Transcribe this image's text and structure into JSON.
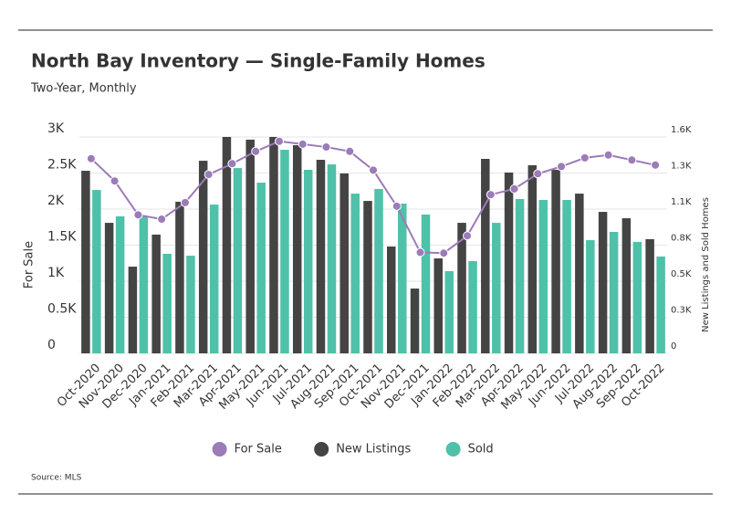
{
  "chart_data": {
    "type": "bar-line",
    "title": "North Bay Inventory — Single-Family Homes",
    "subtitle": "Two-Year, Monthly",
    "ylabel": "For Sale",
    "y2label": "New Listings and Sold Homes",
    "source": "Source: MLS",
    "categories": [
      "Oct-2020",
      "Nov-2020",
      "Dec-2020",
      "Jan-2021",
      "Feb-2021",
      "Mar-2021",
      "Apr-2021",
      "May-2021",
      "Jun-2021",
      "Jul-2021",
      "Aug-2021",
      "Sep-2021",
      "Oct-2021",
      "Nov-2021",
      "Dec-2021",
      "Jan-2022",
      "Feb-2022",
      "Mar-2022",
      "Apr-2022",
      "May-2022",
      "Jun-2022",
      "Jul-2022",
      "Aug-2022",
      "Sep-2022",
      "Oct-2022"
    ],
    "series": [
      {
        "name": "For Sale",
        "type": "line",
        "color": "#9b7bb8",
        "values": [
          2700,
          2390,
          1920,
          1860,
          2090,
          2480,
          2630,
          2800,
          2940,
          2900,
          2860,
          2800,
          2540,
          2040,
          1400,
          1390,
          1630,
          2200,
          2280,
          2490,
          2590,
          2710,
          2750,
          2680,
          2610
        ]
      },
      {
        "name": "New Listings",
        "type": "bar",
        "axis": "y2",
        "color": "#444444",
        "values": [
          1350,
          965,
          641,
          878,
          1121,
          1424,
          1600,
          1580,
          1600,
          1539,
          1431,
          1330,
          1127,
          790,
          479,
          702,
          965,
          1438,
          1337,
          1391,
          1357,
          1181,
          1046,
          999,
          844
        ]
      },
      {
        "name": "Sold",
        "type": "bar",
        "axis": "y2",
        "color": "#4fc1a8",
        "values": [
          1208,
          1013,
          1013,
          736,
          722,
          1100,
          1370,
          1262,
          1505,
          1357,
          1397,
          1181,
          1215,
          1107,
          1026,
          608,
          682,
          965,
          1141,
          1134,
          1134,
          837,
          898,
          824,
          716
        ]
      }
    ],
    "ylim": [
      0,
      3000
    ],
    "yticks": [
      0,
      {
        "value": 500,
        "label": "0.5K"
      },
      {
        "value": 1000,
        "label": "1K"
      },
      {
        "value": 1500,
        "label": "1.5K"
      },
      {
        "value": 2000,
        "label": "2K"
      },
      {
        "value": 2500,
        "label": "2.5K"
      },
      {
        "value": 3000,
        "label": "3K"
      }
    ],
    "y2lim": [
      0,
      1600
    ],
    "y2ticks": [
      0,
      {
        "value": 267,
        "label": "0.3K"
      },
      {
        "value": 533,
        "label": "0.5K"
      },
      {
        "value": 800,
        "label": "0.8K"
      },
      {
        "value": 1067,
        "label": "1.1K"
      },
      {
        "value": 1333,
        "label": "1.3K"
      },
      {
        "value": 1600,
        "label": "1.6K"
      }
    ],
    "grid": true,
    "legend": "bottom"
  }
}
